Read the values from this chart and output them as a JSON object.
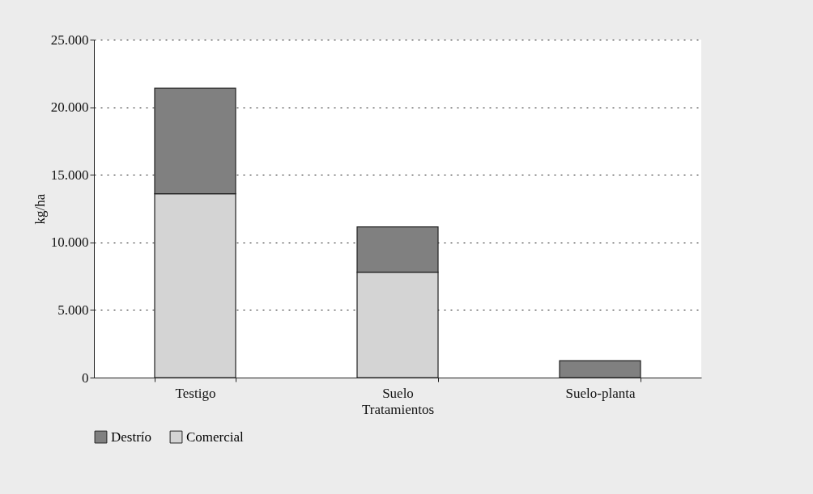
{
  "chart_data": {
    "type": "bar",
    "stacked": true,
    "xlabel": "Tratamientos",
    "ylabel": "kg/ha",
    "categories": [
      "Testigo",
      "Suelo",
      "Suelo-planta"
    ],
    "series": [
      {
        "name": "Comercial",
        "color": "#d4d4d4",
        "values": [
          13600,
          7800,
          0
        ]
      },
      {
        "name": "Destrío",
        "color": "#808080",
        "values": [
          7800,
          3350,
          1250
        ]
      }
    ],
    "ylim": [
      0,
      25000
    ],
    "yticks": [
      0,
      {
        "value": 5000,
        "label": "5.000"
      },
      {
        "value": 10000,
        "label": "10.000"
      },
      {
        "value": 15000,
        "label": "15.000"
      },
      {
        "value": 20000,
        "label": "20.000"
      },
      {
        "value": 25000,
        "label": "25.000"
      }
    ],
    "grid": "y",
    "legend": "bottom"
  }
}
